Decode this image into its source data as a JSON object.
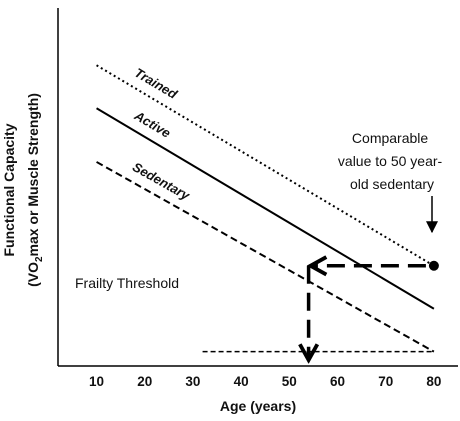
{
  "chart_data": {
    "type": "line",
    "title": "",
    "xlabel": "Age (years)",
    "ylabel_line1": "Functional Capacity",
    "ylabel_line2_parts": [
      "(VO",
      "2",
      "max or Muscle Strength)"
    ],
    "x_ticks": [
      10,
      20,
      30,
      40,
      50,
      60,
      70,
      80
    ],
    "xlim": [
      2,
      85
    ],
    "ylim": [
      0,
      100
    ],
    "y_ticks_shown": false,
    "series": [
      {
        "name": "Trained",
        "style": "dotted",
        "x": [
          10,
          80
        ],
        "y": [
          84,
          28
        ]
      },
      {
        "name": "Active",
        "style": "solid",
        "x": [
          10,
          80
        ],
        "y": [
          72,
          16
        ]
      },
      {
        "name": "Sedentary",
        "style": "dashed",
        "x": [
          10,
          80
        ],
        "y": [
          57,
          4
        ]
      }
    ],
    "threshold": {
      "label": "Frailty Threshold",
      "y": 4,
      "x_start": 32,
      "x_end": 80
    },
    "annotation": {
      "lines": [
        "Comparable",
        "value to 50 year-",
        "old sedentary"
      ],
      "point": {
        "x": 80,
        "y": 28
      },
      "comparison_x": 54
    },
    "colors": {
      "line": "#000000",
      "background": "#ffffff"
    }
  }
}
